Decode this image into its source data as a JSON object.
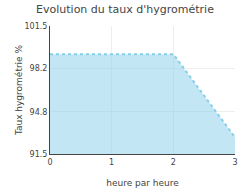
{
  "chart_data": {
    "type": "area",
    "title": "Evolution du taux d'hygrométrie",
    "xlabel": "heure par heure",
    "ylabel": "Taux hygrométrie %",
    "x": [
      0,
      2,
      3
    ],
    "values": [
      99.3,
      99.3,
      92.8
    ],
    "xlim": [
      0,
      3
    ],
    "ylim": [
      91.5,
      101.5
    ],
    "xticks": [
      0,
      1,
      2,
      3
    ],
    "yticks": [
      91.5,
      94.8,
      98.2,
      101.5
    ],
    "grid": true,
    "color": "#87ceeb",
    "line_style": "dotted"
  }
}
